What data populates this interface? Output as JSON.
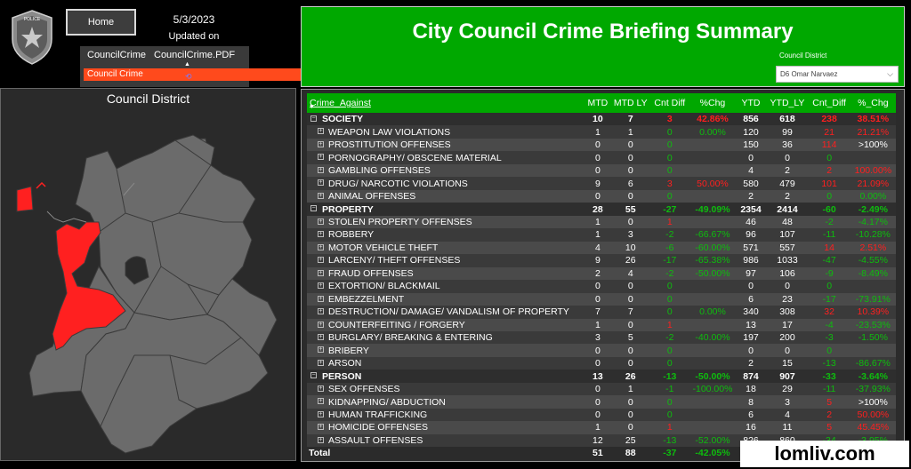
{
  "header": {
    "home_label": "Home",
    "date": "5/3/2023",
    "updated_label": "Updated on",
    "tabs": [
      "CouncilCrime",
      "CouncilCrime.PDF"
    ],
    "active_item": "Council Crime",
    "tab_caret": "▲",
    "badge_text": "POLICE"
  },
  "title": "City Council Crime Briefing Summary",
  "filter": {
    "label": "Council District",
    "value": "D6 Omar Narvaez"
  },
  "map": {
    "title": "Council District",
    "highlight_color": "#ff2020",
    "base_color": "#6b6b6b"
  },
  "table": {
    "columns": [
      "Crime_Against",
      "MTD",
      "MTD LY",
      "Cnt Diff",
      "%Chg",
      "YTD",
      "YTD_LY",
      "Cnt_Diff",
      "%_Chg"
    ],
    "rows": [
      {
        "type": "group",
        "name": "SOCIETY",
        "cells": [
          "10",
          "7",
          "3",
          "42.86%",
          "856",
          "618",
          "238",
          "38.51%"
        ],
        "colors": [
          "",
          "",
          "red",
          "red",
          "",
          "",
          "red",
          "red"
        ]
      },
      {
        "type": "item",
        "name": "WEAPON LAW VIOLATIONS",
        "cells": [
          "1",
          "1",
          "0",
          "0.00%",
          "120",
          "99",
          "21",
          "21.21%"
        ],
        "colors": [
          "",
          "",
          "green",
          "green",
          "",
          "",
          "red",
          "red"
        ]
      },
      {
        "type": "item",
        "name": "PROSTITUTION OFFENSES",
        "cells": [
          "0",
          "0",
          "0",
          "",
          "150",
          "36",
          "114",
          ">100%"
        ],
        "colors": [
          "",
          "",
          "green",
          "",
          "",
          "",
          "red",
          ""
        ]
      },
      {
        "type": "item",
        "name": "PORNOGRAPHY/ OBSCENE MATERIAL",
        "cells": [
          "0",
          "0",
          "0",
          "",
          "0",
          "0",
          "0",
          ""
        ],
        "colors": [
          "",
          "",
          "green",
          "",
          "",
          "",
          "green",
          ""
        ]
      },
      {
        "type": "item",
        "name": "GAMBLING OFFENSES",
        "cells": [
          "0",
          "0",
          "0",
          "",
          "4",
          "2",
          "2",
          "100.00%"
        ],
        "colors": [
          "",
          "",
          "green",
          "",
          "",
          "",
          "red",
          "red"
        ]
      },
      {
        "type": "item",
        "name": "DRUG/ NARCOTIC VIOLATIONS",
        "cells": [
          "9",
          "6",
          "3",
          "50.00%",
          "580",
          "479",
          "101",
          "21.09%"
        ],
        "colors": [
          "",
          "",
          "red",
          "red",
          "",
          "",
          "red",
          "red"
        ]
      },
      {
        "type": "item",
        "name": "ANIMAL OFFENSES",
        "cells": [
          "0",
          "0",
          "0",
          "",
          "2",
          "2",
          "0",
          "0.00%"
        ],
        "colors": [
          "",
          "",
          "green",
          "",
          "",
          "",
          "green",
          "green"
        ]
      },
      {
        "type": "group",
        "name": "PROPERTY",
        "cells": [
          "28",
          "55",
          "-27",
          "-49.09%",
          "2354",
          "2414",
          "-60",
          "-2.49%"
        ],
        "colors": [
          "",
          "",
          "green",
          "green",
          "",
          "",
          "green",
          "green"
        ]
      },
      {
        "type": "item",
        "name": "STOLEN PROPERTY OFFENSES",
        "cells": [
          "1",
          "0",
          "1",
          "",
          "46",
          "48",
          "-2",
          "-4.17%"
        ],
        "colors": [
          "",
          "",
          "red",
          "",
          "",
          "",
          "green",
          "green"
        ]
      },
      {
        "type": "item",
        "name": "ROBBERY",
        "cells": [
          "1",
          "3",
          "-2",
          "-66.67%",
          "96",
          "107",
          "-11",
          "-10.28%"
        ],
        "colors": [
          "",
          "",
          "green",
          "green",
          "",
          "",
          "green",
          "green"
        ]
      },
      {
        "type": "item",
        "name": "MOTOR VEHICLE THEFT",
        "cells": [
          "4",
          "10",
          "-6",
          "-60.00%",
          "571",
          "557",
          "14",
          "2.51%"
        ],
        "colors": [
          "",
          "",
          "green",
          "green",
          "",
          "",
          "red",
          "red"
        ]
      },
      {
        "type": "item",
        "name": "LARCENY/ THEFT OFFENSES",
        "cells": [
          "9",
          "26",
          "-17",
          "-65.38%",
          "986",
          "1033",
          "-47",
          "-4.55%"
        ],
        "colors": [
          "",
          "",
          "green",
          "green",
          "",
          "",
          "green",
          "green"
        ]
      },
      {
        "type": "item",
        "name": "FRAUD OFFENSES",
        "cells": [
          "2",
          "4",
          "-2",
          "-50.00%",
          "97",
          "106",
          "-9",
          "-8.49%"
        ],
        "colors": [
          "",
          "",
          "green",
          "green",
          "",
          "",
          "green",
          "green"
        ]
      },
      {
        "type": "item",
        "name": "EXTORTION/ BLACKMAIL",
        "cells": [
          "0",
          "0",
          "0",
          "",
          "0",
          "0",
          "0",
          ""
        ],
        "colors": [
          "",
          "",
          "green",
          "",
          "",
          "",
          "green",
          ""
        ]
      },
      {
        "type": "item",
        "name": "EMBEZZELMENT",
        "cells": [
          "0",
          "0",
          "0",
          "",
          "6",
          "23",
          "-17",
          "-73.91%"
        ],
        "colors": [
          "",
          "",
          "green",
          "",
          "",
          "",
          "green",
          "green"
        ]
      },
      {
        "type": "item",
        "name": "DESTRUCTION/ DAMAGE/ VANDALISM OF PROPERTY",
        "cells": [
          "7",
          "7",
          "0",
          "0.00%",
          "340",
          "308",
          "32",
          "10.39%"
        ],
        "colors": [
          "",
          "",
          "green",
          "green",
          "",
          "",
          "red",
          "red"
        ]
      },
      {
        "type": "item",
        "name": "COUNTERFEITING / FORGERY",
        "cells": [
          "1",
          "0",
          "1",
          "",
          "13",
          "17",
          "-4",
          "-23.53%"
        ],
        "colors": [
          "",
          "",
          "red",
          "",
          "",
          "",
          "green",
          "green"
        ]
      },
      {
        "type": "item",
        "name": "BURGLARY/ BREAKING & ENTERING",
        "cells": [
          "3",
          "5",
          "-2",
          "-40.00%",
          "197",
          "200",
          "-3",
          "-1.50%"
        ],
        "colors": [
          "",
          "",
          "green",
          "green",
          "",
          "",
          "green",
          "green"
        ]
      },
      {
        "type": "item",
        "name": "BRIBERY",
        "cells": [
          "0",
          "0",
          "0",
          "",
          "0",
          "0",
          "0",
          ""
        ],
        "colors": [
          "",
          "",
          "green",
          "",
          "",
          "",
          "green",
          ""
        ]
      },
      {
        "type": "item",
        "name": "ARSON",
        "cells": [
          "0",
          "0",
          "0",
          "",
          "2",
          "15",
          "-13",
          "-86.67%"
        ],
        "colors": [
          "",
          "",
          "green",
          "",
          "",
          "",
          "green",
          "green"
        ]
      },
      {
        "type": "group",
        "name": "PERSON",
        "cells": [
          "13",
          "26",
          "-13",
          "-50.00%",
          "874",
          "907",
          "-33",
          "-3.64%"
        ],
        "colors": [
          "",
          "",
          "green",
          "green",
          "",
          "",
          "green",
          "green"
        ]
      },
      {
        "type": "item",
        "name": "SEX OFFENSES",
        "cells": [
          "0",
          "1",
          "-1",
          "-100.00%",
          "18",
          "29",
          "-11",
          "-37.93%"
        ],
        "colors": [
          "",
          "",
          "green",
          "green",
          "",
          "",
          "green",
          "green"
        ]
      },
      {
        "type": "item",
        "name": "KIDNAPPING/ ABDUCTION",
        "cells": [
          "0",
          "0",
          "0",
          "",
          "8",
          "3",
          "5",
          ">100%"
        ],
        "colors": [
          "",
          "",
          "green",
          "",
          "",
          "",
          "red",
          ""
        ]
      },
      {
        "type": "item",
        "name": "HUMAN TRAFFICKING",
        "cells": [
          "0",
          "0",
          "0",
          "",
          "6",
          "4",
          "2",
          "50.00%"
        ],
        "colors": [
          "",
          "",
          "green",
          "",
          "",
          "",
          "red",
          "red"
        ]
      },
      {
        "type": "item",
        "name": "HOMICIDE OFFENSES",
        "cells": [
          "1",
          "0",
          "1",
          "",
          "16",
          "11",
          "5",
          "45.45%"
        ],
        "colors": [
          "",
          "",
          "red",
          "",
          "",
          "",
          "red",
          "red"
        ]
      },
      {
        "type": "item",
        "name": "ASSAULT OFFENSES",
        "cells": [
          "12",
          "25",
          "-13",
          "-52.00%",
          "826",
          "860",
          "-34",
          "-3.95%"
        ],
        "colors": [
          "",
          "",
          "green",
          "green",
          "",
          "",
          "green",
          "green"
        ]
      },
      {
        "type": "total",
        "name": "Total",
        "cells": [
          "51",
          "88",
          "-37",
          "-42.05%",
          "4084",
          "3939",
          "145",
          "3.68%"
        ],
        "colors": [
          "",
          "",
          "green",
          "green",
          "",
          "",
          "red",
          "red"
        ]
      }
    ]
  },
  "watermark": "lomliv.com"
}
